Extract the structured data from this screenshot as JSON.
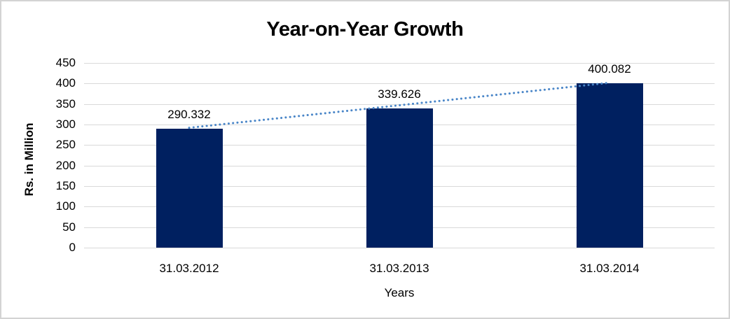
{
  "frame": {
    "background": "#ffffff",
    "border_color": "#d3d3d3"
  },
  "chart_data": {
    "type": "bar",
    "title": "Year-on-Year Growth",
    "categories": [
      "31.03.2012",
      "31.03.2013",
      "31.03.2014"
    ],
    "values": [
      290.332,
      339.626,
      400.082
    ],
    "data_labels": [
      "290.332",
      "339.626",
      "400.082"
    ],
    "xlabel": "Years",
    "ylabel": "Rs. in Million",
    "ylim": [
      0,
      450
    ],
    "yticks": [
      0,
      50,
      100,
      150,
      200,
      250,
      300,
      350,
      400,
      450
    ],
    "grid": true,
    "legend": "none",
    "colors": {
      "bar": "#002060",
      "trendline": "#4a86c8",
      "gridline": "#d9d9d9",
      "text": "#000000"
    },
    "trendline": {
      "type": "linear",
      "style": "dotted",
      "from_category": "31.03.2012",
      "to_category": "31.03.2014"
    }
  }
}
